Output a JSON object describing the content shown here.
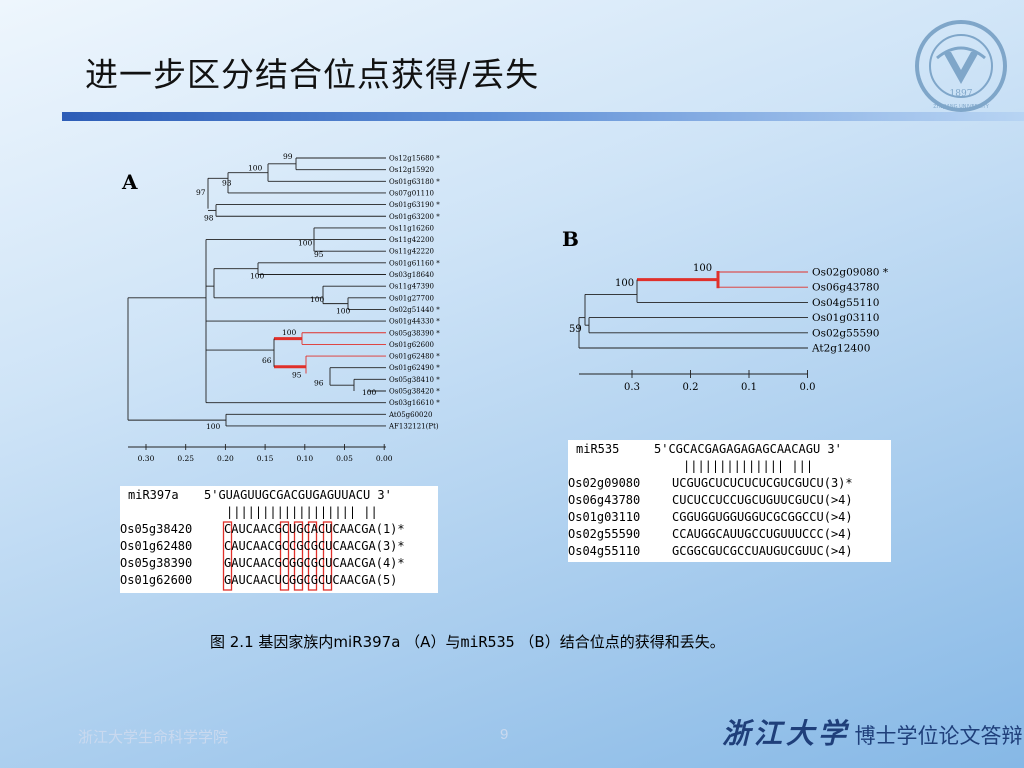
{
  "slide": {
    "title": "进一步区分结合位点获得/丢失",
    "panel_a": "A",
    "panel_b": "B",
    "caption_prefix": "图 2.1 基因家族内miR397a （A）与",
    "caption_mono": "miR535",
    "caption_suffix": " （B）结合位点的获得和丢失。",
    "footer_left": "浙江大学生命科学学院",
    "page_number": "9",
    "footer_calligraphy": "浙江大学",
    "footer_subtitle": "博士学位论文答辩",
    "logo_year": "1897",
    "logo_text": "ZHEJIANG UNIVERSITY"
  },
  "tree_a": {
    "leaves": [
      "Os12g15680 *",
      "Os12g15920",
      "Os01g63180 *",
      "Os07g01110",
      "Os01g63190 *",
      "Os01g63200 *",
      "Os11g16260",
      "Os11g42200",
      "Os11g42220",
      "Os01g61160 *",
      "Os03g18640",
      "Os11g47390",
      "Os01g27700",
      "Os02g51440 *",
      "Os01g44330 *",
      "Os05g38390 *",
      "Os01g62600",
      "Os01g62480 *",
      "Os01g62490 *",
      "Os05g38410 *",
      "Os05g38420 *",
      "Os03g16610 *",
      "At05g60020",
      "AF132121(Pt)"
    ],
    "bootstrap": [
      "99",
      "100",
      "93",
      "97",
      "98",
      "100",
      "95",
      "100",
      "100",
      "100",
      "100",
      "66",
      "95",
      "96",
      "100",
      "100"
    ],
    "axis_ticks": [
      "0.30",
      "0.25",
      "0.20",
      "0.15",
      "0.10",
      "0.05",
      "0.00"
    ]
  },
  "tree_b": {
    "leaves": [
      "Os02g09080 *",
      "Os06g43780",
      "Os04g55110",
      "Os01g03110",
      "Os02g55590",
      "At2g12400"
    ],
    "bootstrap": [
      "100",
      "100",
      "59"
    ],
    "axis_ticks": [
      "0.3",
      "0.2",
      "0.1",
      "0.0"
    ]
  },
  "alignment_a": {
    "header_name": "miR397a",
    "header_seq": "5'GUAGUUGCGACGUGAGUUACU 3'",
    "pairing": "|||||||||||||||||| ||",
    "rows": [
      {
        "id": "Os05g38420",
        "seq": "CAUCAACGCUGCACUCAACGA(1)*"
      },
      {
        "id": "Os01g62480",
        "seq": "CAUCAACGCCGCGCUCAACGA(3)*"
      },
      {
        "id": "Os05g38390",
        "seq": "GAUCAACGCGGCGCUCAACGA(4)*"
      },
      {
        "id": "Os01g62600",
        "seq": "GAUCAACUCGGCGCUCAACGA(5)"
      }
    ]
  },
  "alignment_b": {
    "header_name": "miR535",
    "header_seq": "5'CGCACGAGAGAGAGCAACAGU 3'",
    "pairing": "|||||||||||||| |||",
    "rows": [
      {
        "id": "Os02g09080",
        "seq": "UCGUGCUCUCUCUCGUCGUCU(3)*"
      },
      {
        "id": "Os06g43780",
        "seq": "CUCUCCUCCUGCUGUUCGUCU(>4)"
      },
      {
        "id": "Os01g03110",
        "seq": "CGGUGGUGGUGGUCGCGGCCU(>4)"
      },
      {
        "id": "Os02g55590",
        "seq": "CCAUGGCAUUGCCUGUUUCCC(>4)"
      },
      {
        "id": "Os04g55110",
        "seq": "GCGGCGUCGCCUAUGUCGUUC(>4)"
      }
    ]
  }
}
